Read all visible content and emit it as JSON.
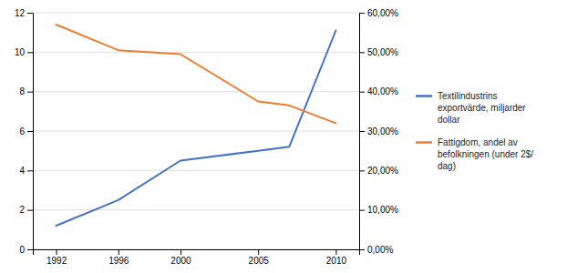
{
  "chart_data": {
    "type": "line",
    "x": [
      1992,
      1996,
      2000,
      2005,
      2007,
      2010
    ],
    "series": [
      {
        "name": "Textilindustrins\nexportvärde, miljarder\ndollar",
        "color": "#4472C4",
        "values": [
          1.2,
          2.5,
          4.5,
          5.0,
          5.2,
          11.1
        ]
      },
      {
        "name": "Fattigdom, andel av\nbefolkningen (under 2$/\ndag)",
        "color": "#ED7D31",
        "values": [
          0.57,
          0.505,
          0.495,
          0.375,
          0.365,
          0.32
        ],
        "axis": "y2"
      }
    ],
    "xlim": [
      1990.5,
      2011.5
    ],
    "xticks": [
      1992,
      1996,
      2000,
      2005,
      2010
    ],
    "ylim": [
      0,
      12
    ],
    "yticks": [
      0,
      2,
      4,
      6,
      8,
      10,
      12
    ],
    "y2lim": [
      0.0,
      0.6
    ],
    "y2ticks": [
      {
        "value": 0.0,
        "label": "0,00%"
      },
      {
        "value": 0.1,
        "label": "10,00%"
      },
      {
        "value": 0.2,
        "label": "20,00%"
      },
      {
        "value": 0.3,
        "label": "30,00%"
      },
      {
        "value": 0.4,
        "label": "40,00%"
      },
      {
        "value": 0.5,
        "label": "50,00%"
      },
      {
        "value": 0.6,
        "label": "60,00%"
      }
    ],
    "grid": true,
    "legend": "right"
  }
}
